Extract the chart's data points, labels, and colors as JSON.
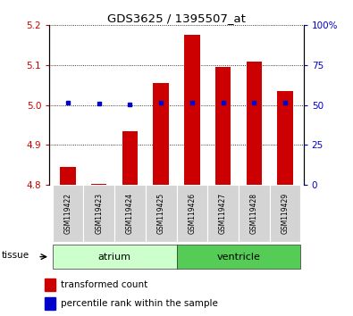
{
  "title": "GDS3625 / 1395507_at",
  "samples": [
    "GSM119422",
    "GSM119423",
    "GSM119424",
    "GSM119425",
    "GSM119426",
    "GSM119427",
    "GSM119428",
    "GSM119429"
  ],
  "red_values": [
    4.845,
    4.802,
    4.935,
    5.055,
    5.175,
    5.095,
    5.11,
    5.035
  ],
  "blue_values": [
    5.005,
    5.003,
    5.002,
    5.007,
    5.005,
    5.005,
    5.007,
    5.005
  ],
  "ylim_left": [
    4.8,
    5.2
  ],
  "ylim_right": [
    0,
    100
  ],
  "yticks_left": [
    4.8,
    4.9,
    5.0,
    5.1,
    5.2
  ],
  "yticks_right": [
    0,
    25,
    50,
    75,
    100
  ],
  "groups": [
    {
      "label": "atrium",
      "start": 0,
      "end": 3,
      "color": "#ccffcc"
    },
    {
      "label": "ventricle",
      "start": 4,
      "end": 7,
      "color": "#55cc55"
    }
  ],
  "bar_color": "#cc0000",
  "dot_color": "#0000cc",
  "tissue_label": "tissue",
  "legend_red": "transformed count",
  "legend_blue": "percentile rank within the sample",
  "left_tick_color": "#cc0000",
  "right_tick_color": "#0000cc",
  "bar_bottom": 4.8,
  "bar_width": 0.5
}
